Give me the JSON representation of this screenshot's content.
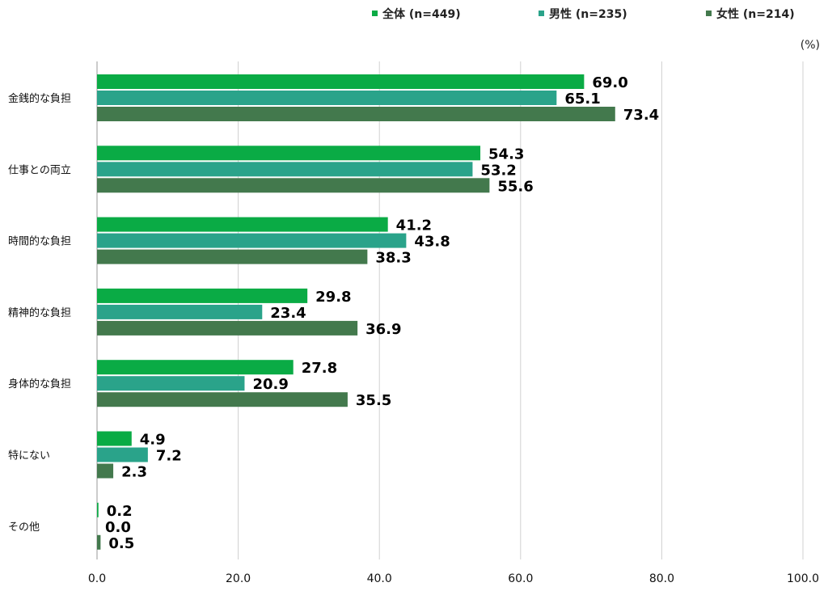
{
  "chart_data": {
    "type": "bar",
    "orientation": "horizontal",
    "unit": "(%)",
    "categories": [
      "金銭的な負担",
      "仕事との両立",
      "時間的な負担",
      "精神的な負担",
      "身体的な負担",
      "特にない",
      "その他"
    ],
    "series": [
      {
        "name": "全体 (n=449)",
        "color": "#0aab45",
        "values": [
          69.0,
          54.3,
          41.2,
          29.8,
          27.8,
          4.9,
          0.2
        ]
      },
      {
        "name": "男性 (n=235)",
        "color": "#2aa38a",
        "values": [
          65.1,
          53.2,
          43.8,
          23.4,
          20.9,
          7.2,
          0.0
        ]
      },
      {
        "name": "女性 (n=214)",
        "color": "#43794d",
        "values": [
          73.4,
          55.6,
          38.3,
          36.9,
          35.5,
          2.3,
          0.5
        ]
      }
    ],
    "value_labels": [
      [
        "69.0",
        "54.3",
        "41.2",
        "29.8",
        "27.8",
        "4.9",
        "0.2"
      ],
      [
        "65.1",
        "53.2",
        "43.8",
        "23.4",
        "20.9",
        "7.2",
        "0.0"
      ],
      [
        "73.4",
        "55.6",
        "38.3",
        "36.9",
        "35.5",
        "2.3",
        "0.5"
      ]
    ],
    "xlim": [
      0,
      100
    ],
    "xticks": [
      "0.0",
      "20.0",
      "40.0",
      "60.0",
      "80.0",
      "100.0"
    ],
    "xtick_values": [
      0,
      20,
      40,
      60,
      80,
      100
    ],
    "grid": true,
    "legend_position": "top-right"
  }
}
